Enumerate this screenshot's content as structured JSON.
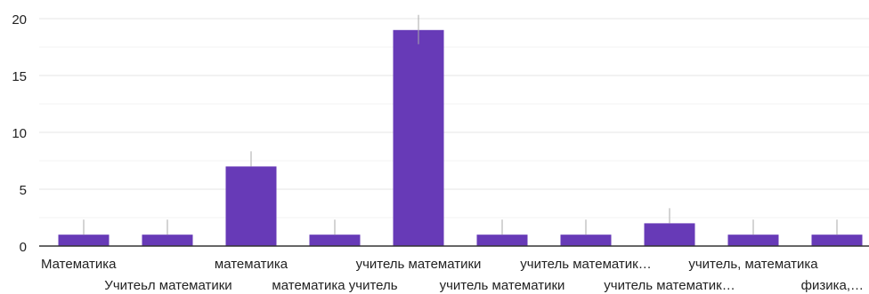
{
  "chart_data": {
    "type": "bar",
    "categories": [
      "Математика",
      "Учитеьл математики",
      "математика",
      "математика учитель",
      "учитель математики",
      "учитель математики",
      "учитель математик…",
      "учитель математик…",
      "учитель, математика",
      "физика,…"
    ],
    "values": [
      1,
      1,
      7,
      1,
      19,
      1,
      1,
      2,
      1,
      1
    ],
    "ylim": [
      0,
      20
    ],
    "yticks": [
      "0",
      "5",
      "10",
      "15",
      "20"
    ],
    "grid": true,
    "colors": {
      "bar": "#673ab7",
      "axis": "#333333",
      "grid": "#e6e6e6",
      "minor_grid": "#f3f3f3",
      "error_line": "#aaaaaa"
    }
  }
}
